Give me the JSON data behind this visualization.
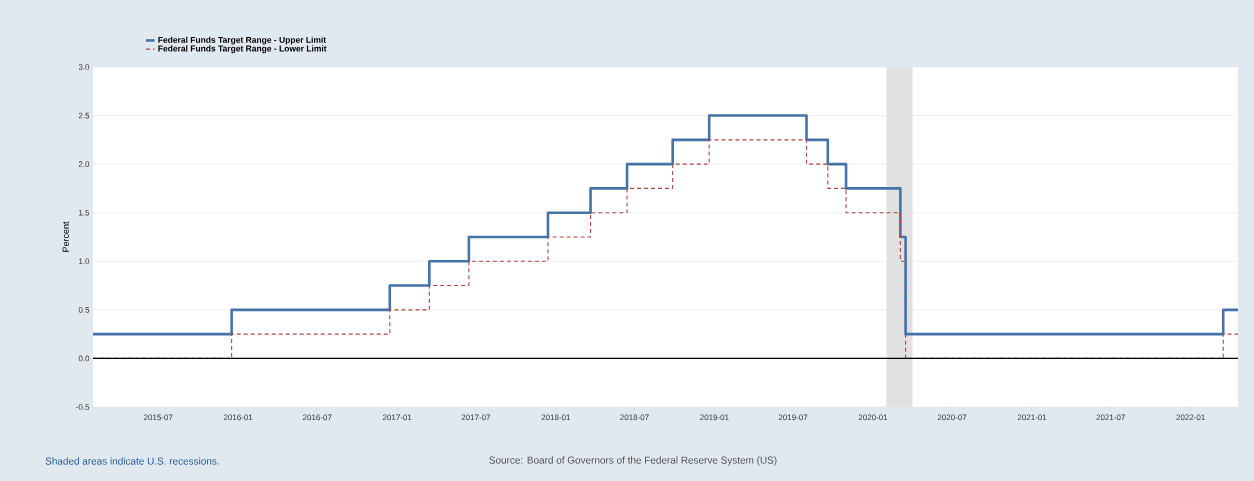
{
  "chart_data": {
    "type": "step",
    "ylabel": "Percent",
    "annotations": [
      "Shaded areas indicate U.S. recessions.",
      "Source: Board of Governors of the Federal Reserve System (US)"
    ],
    "xlim": [
      "2015-02-01",
      "2022-04-20"
    ],
    "xticks": [
      "2015-07",
      "2016-01",
      "2016-07",
      "2017-01",
      "2017-07",
      "2018-01",
      "2018-07",
      "2019-01",
      "2019-07",
      "2020-01",
      "2020-07",
      "2021-01",
      "2021-07",
      "2022-01"
    ],
    "ylim": [
      -0.5,
      3.0
    ],
    "yticks": [
      {
        "value": -0.5,
        "label": "-0.5"
      },
      {
        "value": 0,
        "label": "0.0"
      },
      {
        "value": 0.5,
        "label": "0.5"
      },
      {
        "value": 1,
        "label": "1.0"
      },
      {
        "value": 1.5,
        "label": "1.5"
      },
      {
        "value": 2,
        "label": "2.0"
      },
      {
        "value": 2.5,
        "label": "2.5"
      },
      {
        "value": 3,
        "label": "3.0"
      }
    ],
    "grid": "y",
    "legend": "top left",
    "x": [
      "2015-02-01",
      "2015-12-17",
      "2016-12-15",
      "2017-03-16",
      "2017-06-15",
      "2017-12-14",
      "2018-03-22",
      "2018-06-14",
      "2018-09-27",
      "2018-12-20",
      "2019-08-01",
      "2019-09-19",
      "2019-10-31",
      "2020-03-04",
      "2020-03-16",
      "2022-03-17",
      "2022-04-20"
    ],
    "series": [
      {
        "name": "Federal Funds Target Range - Upper Limit",
        "color": "#4572a7",
        "line_style": "solid",
        "values": [
          0.25,
          0.5,
          0.75,
          1.0,
          1.25,
          1.5,
          1.75,
          2.0,
          2.25,
          2.5,
          2.25,
          2.0,
          1.75,
          1.25,
          0.25,
          0.5,
          0.5
        ]
      },
      {
        "name": "Federal Funds Target Range - Lower Limit",
        "color": "#aa4643",
        "line_style": "dashed",
        "values": [
          0,
          0.25,
          0.5,
          0.75,
          1.0,
          1.25,
          1.5,
          1.75,
          2.0,
          2.25,
          2.0,
          1.75,
          1.5,
          1.0,
          0,
          0.25,
          0.25
        ]
      }
    ],
    "bands": [
      {
        "axis": "x",
        "from": "2020-02-01",
        "to": "2020-04-01",
        "color": "#e1e1e1"
      }
    ],
    "ref_lines": [
      {
        "axis": "y",
        "value": 0,
        "color": "#000000"
      }
    ]
  }
}
